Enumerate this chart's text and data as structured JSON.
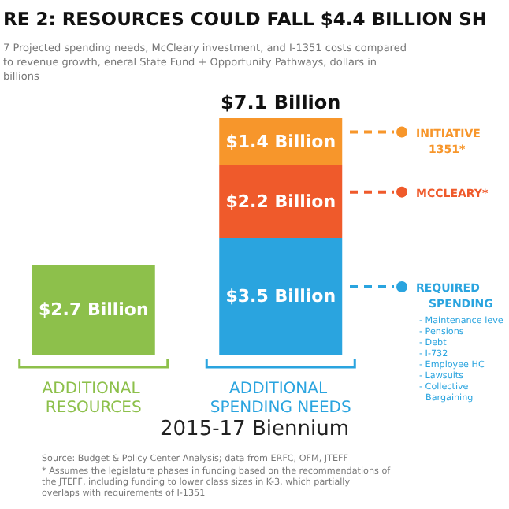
{
  "chart_data": {
    "type": "bar",
    "title": "RE 2: RESOURCES COULD FALL $4.4 BILLION SH",
    "subtitle": "7 Projected spending needs, McCleary investment, and I-1351 costs compared to revenue growth, eneral State Fund + Opportunity Pathways, dollars in billions",
    "xlabel": "2015-17 Biennium",
    "categories": [
      "ADDITIONAL RESOURCES",
      "ADDITIONAL SPENDING NEEDS"
    ],
    "stacked": true,
    "tick_labels": "x",
    "legend": "right",
    "series": [
      {
        "color": "#8dc04b",
        "values": [
          2.7,
          null
        ],
        "value_labels": [
          "$2.7 Billion",
          null
        ]
      },
      {
        "name": "REQUIRED SPENDING",
        "color": "#2aa4df",
        "values": [
          null,
          3.5
        ],
        "value_labels": [
          null,
          "$3.5 Billion"
        ]
      },
      {
        "name": "MCCLEARY*",
        "color": "#ef5a2b",
        "values": [
          null,
          2.2
        ],
        "value_labels": [
          null,
          "$2.2 Billion"
        ]
      },
      {
        "name": "INITIATIVE 1351*",
        "color": "#f7962b",
        "values": [
          null,
          1.4
        ],
        "value_labels": [
          null,
          "$1.4 Billion"
        ]
      }
    ],
    "totals": [
      null,
      "$7.1 Billion"
    ],
    "annotations": [
      "- Maintenance leve",
      "- Pensions",
      "- Debt",
      "- I-732",
      "- Employee HC",
      "- Lawsuits",
      "- Collective Bargaining",
      "Source: Budget & Policy Center Analysis; data from ERFC, OFM, JTEFF",
      "* Assumes the legislature phases in funding based on the recommendations of the JTEFF, including funding to lower class sizes in K-3, which partially overlaps with requirements of I-1351"
    ]
  }
}
